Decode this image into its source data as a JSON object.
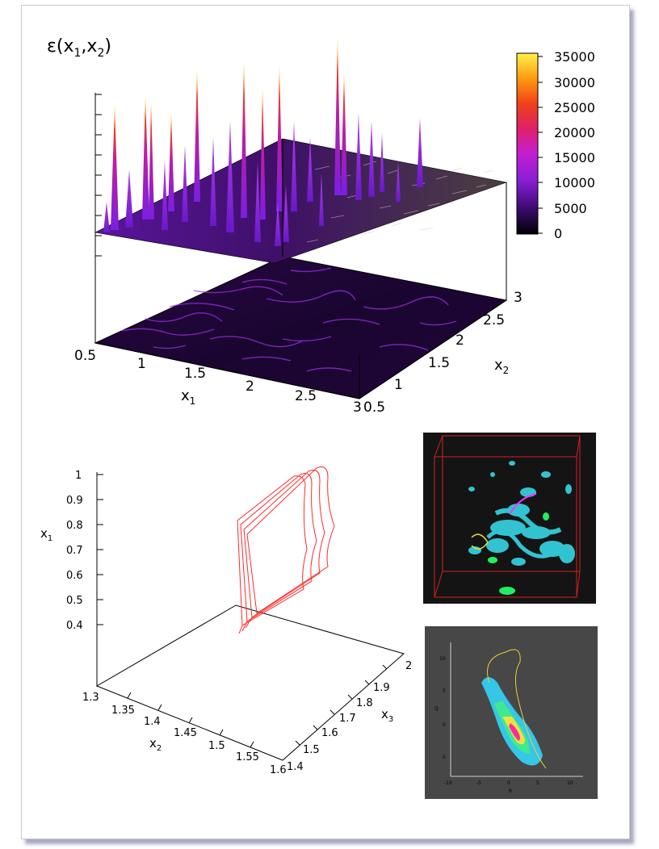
{
  "top_plot": {
    "title_symbol": "ε(x",
    "title_sub1": "1",
    "title_sep": ",x",
    "title_sub2": "2",
    "title_close": ")",
    "colorbar_ticks": [
      "35000",
      "30000",
      "25000",
      "20000",
      "15000",
      "10000",
      "5000",
      "0"
    ],
    "x1_ticks": [
      "0.5",
      "1",
      "1.5",
      "2",
      "2.5",
      "3"
    ],
    "x2_ticks": [
      "0.5",
      "1",
      "1.5",
      "2",
      "2.5",
      "3"
    ],
    "x1_label": "x",
    "x1_sub": "1",
    "x2_label": "x",
    "x2_sub": "2"
  },
  "bottom_plot": {
    "x1_ticks": [
      "1",
      "0.9",
      "0.8",
      "0.7",
      "0.6",
      "0.5",
      "0.4"
    ],
    "x2_ticks": [
      "1.3",
      "1.35",
      "1.4",
      "1.45",
      "1.5",
      "1.55",
      "1.6"
    ],
    "x3_ticks": [
      "1.4",
      "1.5",
      "1.6",
      "1.7",
      "1.8",
      "1.9",
      "2"
    ],
    "x1_label": "x",
    "x1_sub": "1",
    "x2_label": "x",
    "x2_sub": "2",
    "x3_label": "x",
    "x3_sub": "3"
  },
  "inset_phase": {
    "x_ticks": [
      "-10",
      "-5",
      "0",
      "5",
      "10"
    ],
    "y_ticks": [
      "10",
      "5",
      "0",
      "-5"
    ],
    "x_label": "R",
    "y_label": "Q"
  },
  "colors": {
    "surface_purple": "#7b1fd6",
    "surface_dark": "#3a0a5c",
    "wire_red": "#ff2a2a",
    "inset_bg": "#141414",
    "inset2_bg": "#474747",
    "iso_cyan": "#36d6e6"
  }
}
